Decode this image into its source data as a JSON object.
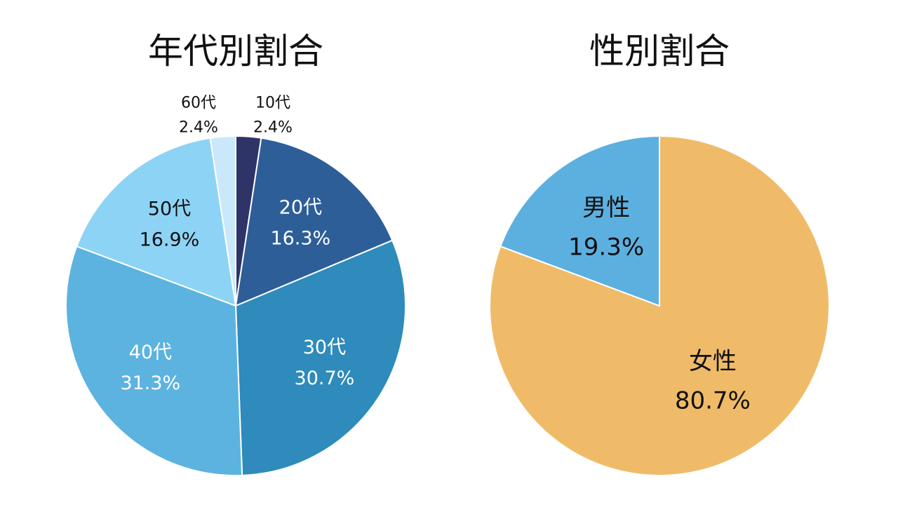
{
  "chart_data": [
    {
      "type": "pie",
      "title": "年代別割合",
      "start": "12 o'clock",
      "direction": "clockwise",
      "slices": [
        {
          "label": "10代",
          "value": 2.4,
          "display": "2.4%",
          "color": "#2e3467",
          "label_color": "#111111",
          "label_placement": "outside"
        },
        {
          "label": "20代",
          "value": 16.3,
          "display": "16.3%",
          "color": "#2e5e98",
          "label_color": "#ffffff",
          "label_placement": "inside"
        },
        {
          "label": "30代",
          "value": 30.7,
          "display": "30.7%",
          "color": "#2e8bbb",
          "label_color": "#ffffff",
          "label_placement": "inside"
        },
        {
          "label": "40代",
          "value": 31.3,
          "display": "31.3%",
          "color": "#5cb3e0",
          "label_color": "#ffffff",
          "label_placement": "inside"
        },
        {
          "label": "50代",
          "value": 16.9,
          "display": "16.9%",
          "color": "#8dd3f6",
          "label_color": "#111111",
          "label_placement": "inside"
        },
        {
          "label": "60代",
          "value": 2.4,
          "display": "2.4%",
          "color": "#c9e9fb",
          "label_color": "#111111",
          "label_placement": "outside"
        }
      ]
    },
    {
      "type": "pie",
      "title": "性別割合",
      "start": "12 o'clock",
      "direction": "clockwise",
      "slices": [
        {
          "label": "女性",
          "value": 80.7,
          "display": "80.7%",
          "color": "#f0bb68",
          "label_color": "#111111",
          "label_placement": "inside"
        },
        {
          "label": "男性",
          "value": 19.3,
          "display": "19.3%",
          "color": "#5cb0e0",
          "label_color": "#111111",
          "label_placement": "inside"
        }
      ]
    }
  ]
}
